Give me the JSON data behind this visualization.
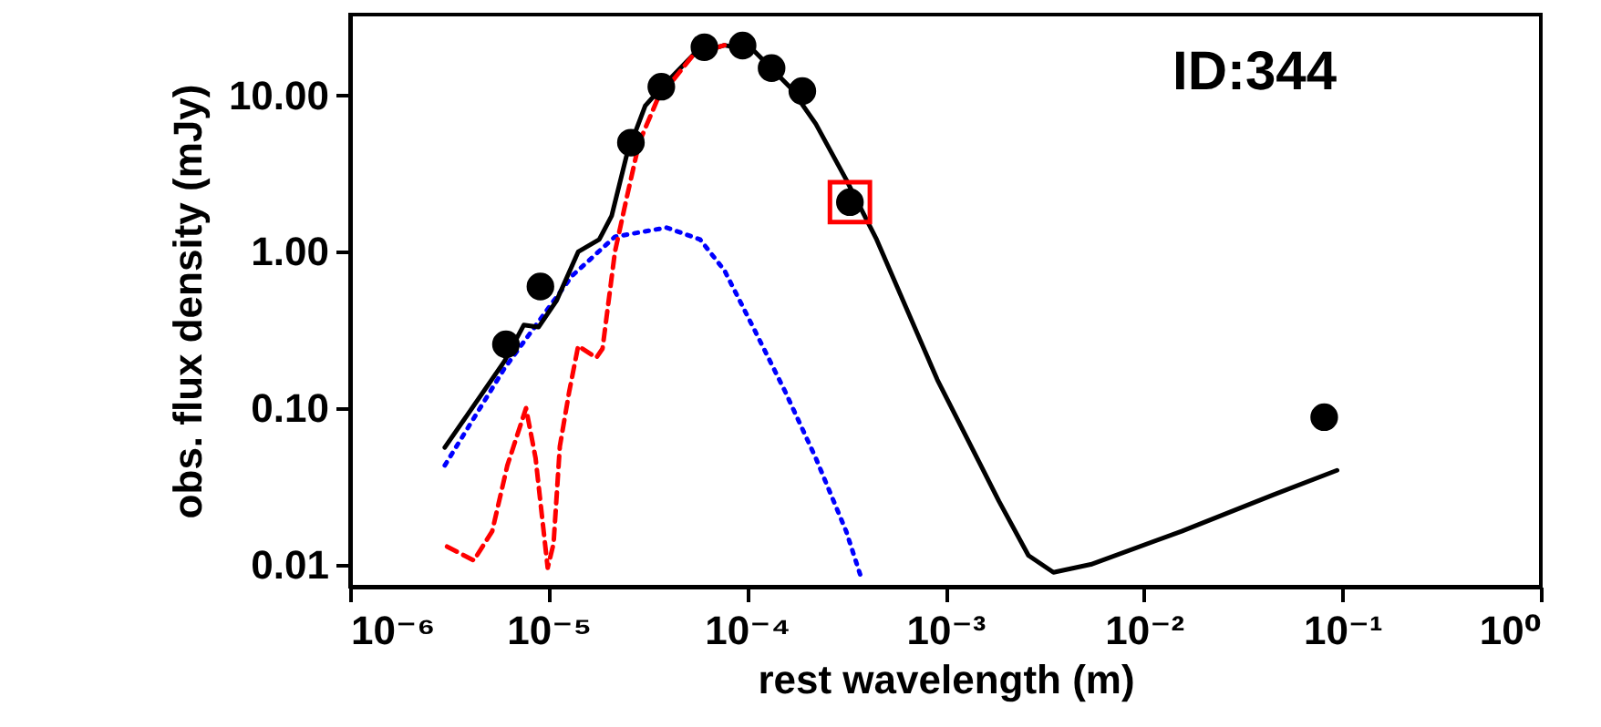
{
  "chart_data": {
    "type": "scatter",
    "xlabel": "rest wavelength (m)",
    "ylabel": "obs. flux density (mJy)",
    "annotations": [
      "ID:344"
    ],
    "log": "xy",
    "grid": false,
    "xlim": [
      1e-06,
      1
    ],
    "xticks": [
      {
        "value": 1e-06,
        "label": "10⁻⁶"
      },
      {
        "value": 1e-05,
        "label": "10⁻⁵"
      },
      {
        "value": 0.0001,
        "label": "10⁻⁴"
      },
      {
        "value": 0.001,
        "label": "10⁻³"
      },
      {
        "value": 0.01,
        "label": "10⁻²"
      },
      {
        "value": 0.1,
        "label": "10⁻¹"
      },
      {
        "value": 1,
        "label": "10⁰"
      }
    ],
    "ylim": [
      0.0072,
      33
    ],
    "yticks": [
      0.01,
      {
        "value": 0.1,
        "label": "0.10"
      },
      {
        "value": 1,
        "label": "1.00"
      },
      {
        "value": 10,
        "label": "10.00"
      }
    ],
    "series": [
      {
        "type": "line",
        "line_style": "dotted",
        "color": "#0000ff",
        "x": [
          3e-06,
          6e-06,
          1.31e-05,
          2.16e-05,
          3.93e-05,
          5.8e-05,
          7.7e-05,
          0.00011,
          0.000156,
          0.000222,
          0.000316,
          0.00038
        ],
        "values": [
          0.043,
          0.18,
          0.7,
          1.25,
          1.43,
          1.2,
          0.76,
          0.31,
          0.127,
          0.048,
          0.0163,
          0.0079
        ]
      },
      {
        "type": "line",
        "line_style": "solid",
        "color": "#000000",
        "x": [
          3e-06,
          6e-06,
          7.5e-06,
          8.9e-06,
          1.1e-05,
          1.41e-05,
          1.8e-05,
          2.08e-05,
          2.48e-05,
          3.07e-05,
          3.74e-05,
          5.4e-05,
          7.7e-05,
          0.000109,
          0.000166,
          0.000222,
          0.000316,
          0.00045,
          0.00091,
          0.00186,
          0.00262,
          0.0035,
          0.0054,
          0.0155,
          0.0449,
          0.094
        ],
        "values": [
          0.056,
          0.2,
          0.34,
          0.33,
          0.49,
          1.0,
          1.2,
          1.7,
          4.2,
          8.6,
          11.4,
          18.4,
          21,
          19.2,
          11.2,
          6.6,
          2.9,
          1.2,
          0.152,
          0.0254,
          0.0114,
          0.0089,
          0.01,
          0.0163,
          0.0279,
          0.04
        ]
      },
      {
        "type": "line",
        "line_style": "dashed",
        "color": "#ff0000",
        "x": [
          3.08e-06,
          4.2e-06,
          5.2e-06,
          6.2e-06,
          7.7e-06,
          8.6e-06,
          9.9e-06,
          1.06e-05,
          1.14e-05,
          1.27e-05,
          1.41e-05,
          1.74e-05,
          1.87e-05,
          2.16e-05,
          2.48e-05,
          2.86e-05,
          3.53e-05,
          5.4e-05,
          7.7e-05
        ],
        "values": [
          0.013,
          0.0106,
          0.0163,
          0.043,
          0.1,
          0.048,
          0.0095,
          0.0136,
          0.057,
          0.127,
          0.25,
          0.21,
          0.24,
          1.0,
          2.24,
          5.0,
          9.4,
          18.4,
          21
        ]
      },
      {
        "type": "scatter",
        "marker": "circle",
        "color": "#000000",
        "x": [
          6.1e-06,
          9.1e-06,
          2.6e-05,
          3.7e-05,
          6.1e-05,
          9.5e-05,
          0.000133,
          0.00019,
          0.00033,
          0.081
        ],
        "values": [
          0.256,
          0.6,
          5.0,
          11.4,
          20.4,
          20.9,
          15,
          10.7,
          2.08,
          0.0875
        ]
      },
      {
        "type": "scatter",
        "marker": "square",
        "color": "#ff0000",
        "x": [
          0.00033
        ],
        "values": [
          2.08
        ]
      }
    ]
  }
}
